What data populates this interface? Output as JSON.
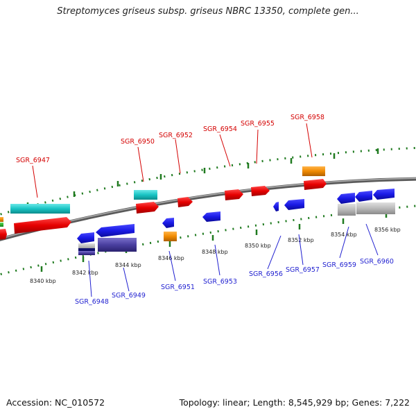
{
  "title": "Streptomyces griseus subsp. griseus NBRC 13350, complete gen...",
  "footer": {
    "accession": "Accession: NC_010572",
    "summary": "Topology: linear; Length: 8,545,929 bp; Genes: 7,222"
  },
  "colors": {
    "backbone": "#7d7d7d",
    "tick": "#1f7a1f",
    "label_red": "#d40000",
    "label_blue": "#1f1fd0",
    "gene_red": "#e60000",
    "gene_blue": "#1a1ae6",
    "gene_cyan": "#19c4c4",
    "gene_orange": "#f08a00",
    "gene_purple": "#4a3fa0",
    "gene_grey": "#b9b9b9",
    "gene_green": "#20b020"
  },
  "scale_labels": [
    "8340 kbp",
    "8342 kbp",
    "8344 kbp",
    "8346 kbp",
    "8348 kbp",
    "8350 kbp",
    "8352 kbp",
    "8354 kbp",
    "8356 kbp"
  ],
  "gene_labels_top": [
    "SGR_6947",
    "SGR_6950",
    "SGR_6952",
    "SGR_6954",
    "SGR_6955",
    "SGR_6958"
  ],
  "gene_labels_bottom": [
    "SGR_6948",
    "SGR_6949",
    "SGR_6951",
    "SGR_6953",
    "SGR_6956",
    "SGR_6957",
    "SGR_6959",
    "SGR_6960"
  ]
}
